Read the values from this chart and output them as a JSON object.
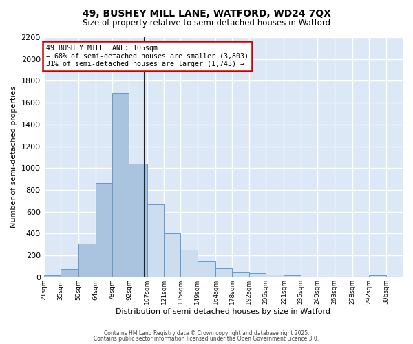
{
  "title_line1": "49, BUSHEY MILL LANE, WATFORD, WD24 7QX",
  "title_line2": "Size of property relative to semi-detached houses in Watford",
  "xlabel": "Distribution of semi-detached houses by size in Watford",
  "ylabel": "Number of semi-detached properties",
  "property_size": 105,
  "annotation_line1": "49 BUSHEY MILL LANE: 105sqm",
  "annotation_line2": "← 68% of semi-detached houses are smaller (3,803)",
  "annotation_line3": "31% of semi-detached houses are larger (1,743) →",
  "bar_edges": [
    21,
    35,
    50,
    64,
    78,
    92,
    107,
    121,
    135,
    149,
    164,
    178,
    192,
    206,
    221,
    235,
    249,
    263,
    278,
    292,
    306,
    320
  ],
  "bar_heights": [
    15,
    75,
    310,
    860,
    1690,
    1040,
    670,
    400,
    250,
    145,
    80,
    40,
    35,
    25,
    15,
    5,
    2,
    1,
    1,
    15,
    5
  ],
  "bar_labels": [
    "21sqm",
    "35sqm",
    "50sqm",
    "64sqm",
    "78sqm",
    "92sqm",
    "107sqm",
    "121sqm",
    "135sqm",
    "149sqm",
    "164sqm",
    "178sqm",
    "192sqm",
    "206sqm",
    "221sqm",
    "235sqm",
    "249sqm",
    "263sqm",
    "278sqm",
    "292sqm",
    "306sqm"
  ],
  "color_left": "#aac4df",
  "color_right": "#ccddf0",
  "vline_color": "#222222",
  "annotation_box_edgecolor": "#cc0000",
  "background_color": "#dce8f5",
  "grid_color": "#ffffff",
  "ylim": [
    0,
    2200
  ],
  "yticks": [
    0,
    200,
    400,
    600,
    800,
    1000,
    1200,
    1400,
    1600,
    1800,
    2000,
    2200
  ],
  "footer_line1": "Contains HM Land Registry data © Crown copyright and database right 2025.",
  "footer_line2": "Contains public sector information licensed under the Open Government Licence 3.0."
}
